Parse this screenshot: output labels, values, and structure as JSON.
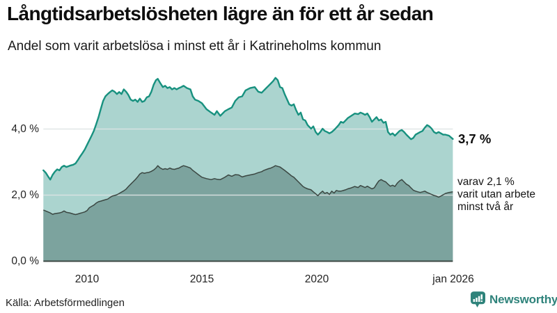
{
  "header": {
    "title": "Långtidsarbetslösheten lägre än för ett år sedan",
    "subtitle": "Andel som varit arbetslösa i minst ett år i Katrineholms kommun"
  },
  "chart_data": {
    "type": "area",
    "title": "Långtidsarbetslösheten lägre än för ett år sedan",
    "subtitle": "Andel som varit arbetslösa i minst ett år i Katrineholms kommun",
    "unit": "%",
    "x_range": [
      2008.1,
      2026.0
    ],
    "ylim": [
      0,
      5.9
    ],
    "grid": "horizontal",
    "legend_position": "none",
    "yticks": [
      {
        "value": 4,
        "label": "4,0 %"
      },
      {
        "value": 2,
        "label": "2,0 %"
      },
      {
        "value": 0,
        "label": "0,0 %"
      }
    ],
    "xticks": [
      {
        "value": 2010,
        "label": "2010"
      },
      {
        "value": 2015,
        "label": "2015"
      },
      {
        "value": 2020,
        "label": "2020"
      },
      {
        "value": 2026,
        "label": "jan 2026"
      }
    ],
    "columns": [
      "year",
      "andel_arbetslosa_minst_ett_ar_pct",
      "varav_utan_arbete_minst_tva_ar_pct"
    ],
    "points": [
      [
        2008.1,
        2.75,
        1.55
      ],
      [
        2008.2,
        2.68,
        1.52
      ],
      [
        2008.3,
        2.57,
        1.49
      ],
      [
        2008.4,
        2.47,
        1.46
      ],
      [
        2008.5,
        2.61,
        1.42
      ],
      [
        2008.6,
        2.71,
        1.44
      ],
      [
        2008.7,
        2.78,
        1.45
      ],
      [
        2008.8,
        2.75,
        1.46
      ],
      [
        2008.9,
        2.85,
        1.48
      ],
      [
        2009.0,
        2.89,
        1.52
      ],
      [
        2009.1,
        2.85,
        1.48
      ],
      [
        2009.25,
        2.89,
        1.46
      ],
      [
        2009.4,
        2.92,
        1.43
      ],
      [
        2009.5,
        2.96,
        1.41
      ],
      [
        2009.6,
        3.06,
        1.43
      ],
      [
        2009.7,
        3.17,
        1.45
      ],
      [
        2009.8,
        3.27,
        1.47
      ],
      [
        2009.9,
        3.38,
        1.49
      ],
      [
        2010.0,
        3.52,
        1.53
      ],
      [
        2010.1,
        3.66,
        1.62
      ],
      [
        2010.2,
        3.8,
        1.66
      ],
      [
        2010.3,
        3.95,
        1.7
      ],
      [
        2010.4,
        4.15,
        1.76
      ],
      [
        2010.5,
        4.36,
        1.8
      ],
      [
        2010.6,
        4.61,
        1.82
      ],
      [
        2010.7,
        4.85,
        1.84
      ],
      [
        2010.8,
        4.99,
        1.86
      ],
      [
        2010.9,
        5.06,
        1.88
      ],
      [
        2011.0,
        5.12,
        1.93
      ],
      [
        2011.1,
        5.17,
        1.97
      ],
      [
        2011.2,
        5.13,
        1.99
      ],
      [
        2011.3,
        5.06,
        2.01
      ],
      [
        2011.4,
        5.12,
        2.05
      ],
      [
        2011.5,
        5.06,
        2.09
      ],
      [
        2011.6,
        5.2,
        2.13
      ],
      [
        2011.7,
        5.13,
        2.18
      ],
      [
        2011.8,
        5.03,
        2.26
      ],
      [
        2011.9,
        4.89,
        2.33
      ],
      [
        2012.0,
        4.85,
        2.4
      ],
      [
        2012.1,
        4.89,
        2.47
      ],
      [
        2012.2,
        4.82,
        2.55
      ],
      [
        2012.3,
        4.92,
        2.64
      ],
      [
        2012.4,
        4.82,
        2.68
      ],
      [
        2012.5,
        4.85,
        2.66
      ],
      [
        2012.6,
        4.96,
        2.68
      ],
      [
        2012.7,
        4.99,
        2.69
      ],
      [
        2012.8,
        5.13,
        2.72
      ],
      [
        2012.9,
        5.34,
        2.76
      ],
      [
        2013.0,
        5.48,
        2.82
      ],
      [
        2013.08,
        5.52,
        2.89
      ],
      [
        2013.17,
        5.41,
        2.83
      ],
      [
        2013.3,
        5.27,
        2.78
      ],
      [
        2013.4,
        5.31,
        2.8
      ],
      [
        2013.5,
        5.24,
        2.78
      ],
      [
        2013.6,
        5.27,
        2.82
      ],
      [
        2013.7,
        5.2,
        2.79
      ],
      [
        2013.8,
        5.24,
        2.78
      ],
      [
        2013.9,
        5.2,
        2.8
      ],
      [
        2014.0,
        5.24,
        2.82
      ],
      [
        2014.1,
        5.27,
        2.86
      ],
      [
        2014.2,
        5.31,
        2.89
      ],
      [
        2014.35,
        5.24,
        2.86
      ],
      [
        2014.5,
        5.2,
        2.82
      ],
      [
        2014.6,
        4.99,
        2.75
      ],
      [
        2014.7,
        4.89,
        2.7
      ],
      [
        2014.85,
        4.85,
        2.62
      ],
      [
        2015.0,
        4.78,
        2.54
      ],
      [
        2015.2,
        4.6,
        2.5
      ],
      [
        2015.4,
        4.5,
        2.47
      ],
      [
        2015.55,
        4.43,
        2.5
      ],
      [
        2015.65,
        4.54,
        2.48
      ],
      [
        2015.8,
        4.4,
        2.47
      ],
      [
        2016.0,
        4.54,
        2.54
      ],
      [
        2016.15,
        4.6,
        2.61
      ],
      [
        2016.3,
        4.65,
        2.57
      ],
      [
        2016.45,
        4.85,
        2.62
      ],
      [
        2016.6,
        4.96,
        2.61
      ],
      [
        2016.75,
        4.99,
        2.55
      ],
      [
        2016.9,
        5.17,
        2.58
      ],
      [
        2017.1,
        5.24,
        2.61
      ],
      [
        2017.3,
        5.27,
        2.64
      ],
      [
        2017.45,
        5.13,
        2.68
      ],
      [
        2017.6,
        5.1,
        2.71
      ],
      [
        2017.7,
        5.17,
        2.75
      ],
      [
        2017.9,
        5.31,
        2.8
      ],
      [
        2018.0,
        5.38,
        2.82
      ],
      [
        2018.1,
        5.45,
        2.85
      ],
      [
        2018.2,
        5.55,
        2.89
      ],
      [
        2018.3,
        5.48,
        2.87
      ],
      [
        2018.4,
        5.27,
        2.85
      ],
      [
        2018.5,
        5.24,
        2.8
      ],
      [
        2018.6,
        5.06,
        2.75
      ],
      [
        2018.8,
        4.75,
        2.64
      ],
      [
        2018.9,
        4.71,
        2.58
      ],
      [
        2019.0,
        4.75,
        2.54
      ],
      [
        2019.1,
        4.57,
        2.47
      ],
      [
        2019.2,
        4.43,
        2.4
      ],
      [
        2019.3,
        4.5,
        2.33
      ],
      [
        2019.4,
        4.29,
        2.26
      ],
      [
        2019.5,
        4.26,
        2.22
      ],
      [
        2019.6,
        4.12,
        2.19
      ],
      [
        2019.75,
        4.01,
        2.16
      ],
      [
        2019.85,
        4.08,
        2.1
      ],
      [
        2019.95,
        3.91,
        2.04
      ],
      [
        2020.05,
        3.83,
        1.98
      ],
      [
        2020.15,
        3.91,
        2.06
      ],
      [
        2020.25,
        4.01,
        2.12
      ],
      [
        2020.35,
        3.94,
        2.05
      ],
      [
        2020.45,
        3.91,
        2.08
      ],
      [
        2020.55,
        3.87,
        2.02
      ],
      [
        2020.65,
        3.91,
        2.12
      ],
      [
        2020.75,
        3.97,
        2.06
      ],
      [
        2020.85,
        4.04,
        2.14
      ],
      [
        2020.95,
        4.12,
        2.12
      ],
      [
        2021.05,
        4.22,
        2.12
      ],
      [
        2021.15,
        4.19,
        2.14
      ],
      [
        2021.25,
        4.26,
        2.16
      ],
      [
        2021.35,
        4.33,
        2.19
      ],
      [
        2021.5,
        4.4,
        2.22
      ],
      [
        2021.65,
        4.47,
        2.26
      ],
      [
        2021.8,
        4.45,
        2.23
      ],
      [
        2021.9,
        4.5,
        2.29
      ],
      [
        2022.0,
        4.47,
        2.26
      ],
      [
        2022.1,
        4.43,
        2.23
      ],
      [
        2022.2,
        4.47,
        2.27
      ],
      [
        2022.3,
        4.36,
        2.23
      ],
      [
        2022.4,
        4.22,
        2.19
      ],
      [
        2022.5,
        4.29,
        2.22
      ],
      [
        2022.6,
        4.36,
        2.33
      ],
      [
        2022.7,
        4.26,
        2.43
      ],
      [
        2022.8,
        4.29,
        2.47
      ],
      [
        2022.9,
        4.19,
        2.43
      ],
      [
        2023.0,
        4.22,
        2.4
      ],
      [
        2023.1,
        3.91,
        2.33
      ],
      [
        2023.2,
        3.83,
        2.27
      ],
      [
        2023.3,
        3.87,
        2.3
      ],
      [
        2023.4,
        3.8,
        2.26
      ],
      [
        2023.5,
        3.87,
        2.36
      ],
      [
        2023.6,
        3.94,
        2.43
      ],
      [
        2023.7,
        3.97,
        2.47
      ],
      [
        2023.8,
        3.91,
        2.4
      ],
      [
        2023.9,
        3.83,
        2.33
      ],
      [
        2024.0,
        3.76,
        2.29
      ],
      [
        2024.1,
        3.69,
        2.22
      ],
      [
        2024.2,
        3.73,
        2.15
      ],
      [
        2024.3,
        3.83,
        2.12
      ],
      [
        2024.4,
        3.87,
        2.1
      ],
      [
        2024.5,
        3.91,
        2.08
      ],
      [
        2024.6,
        3.94,
        2.1
      ],
      [
        2024.7,
        4.04,
        2.12
      ],
      [
        2024.8,
        4.12,
        2.08
      ],
      [
        2024.9,
        4.08,
        2.05
      ],
      [
        2025.0,
        4.01,
        2.02
      ],
      [
        2025.1,
        3.91,
        1.99
      ],
      [
        2025.2,
        3.87,
        1.97
      ],
      [
        2025.3,
        3.91,
        1.94
      ],
      [
        2025.4,
        3.87,
        1.97
      ],
      [
        2025.5,
        3.83,
        2.01
      ],
      [
        2025.6,
        3.83,
        2.05
      ],
      [
        2025.75,
        3.8,
        2.08
      ],
      [
        2025.92,
        3.7,
        2.1
      ]
    ],
    "end_label": "3,7 %",
    "annotation": {
      "lines": [
        "varav 2,1 %",
        "varit utan arbete",
        "minst två år"
      ]
    },
    "colors": {
      "line_total": "#18917f",
      "fill_total": "#abd4cf",
      "line_two_year": "#3b4742",
      "fill_two_year": "#7ca39e",
      "grid": "#dde3e3",
      "baseline": "#3b4742"
    }
  },
  "footer": {
    "source": "Källa: Arbetsförmedlingen",
    "brand": "Newsworthy",
    "brand_color": "#2f837b"
  }
}
